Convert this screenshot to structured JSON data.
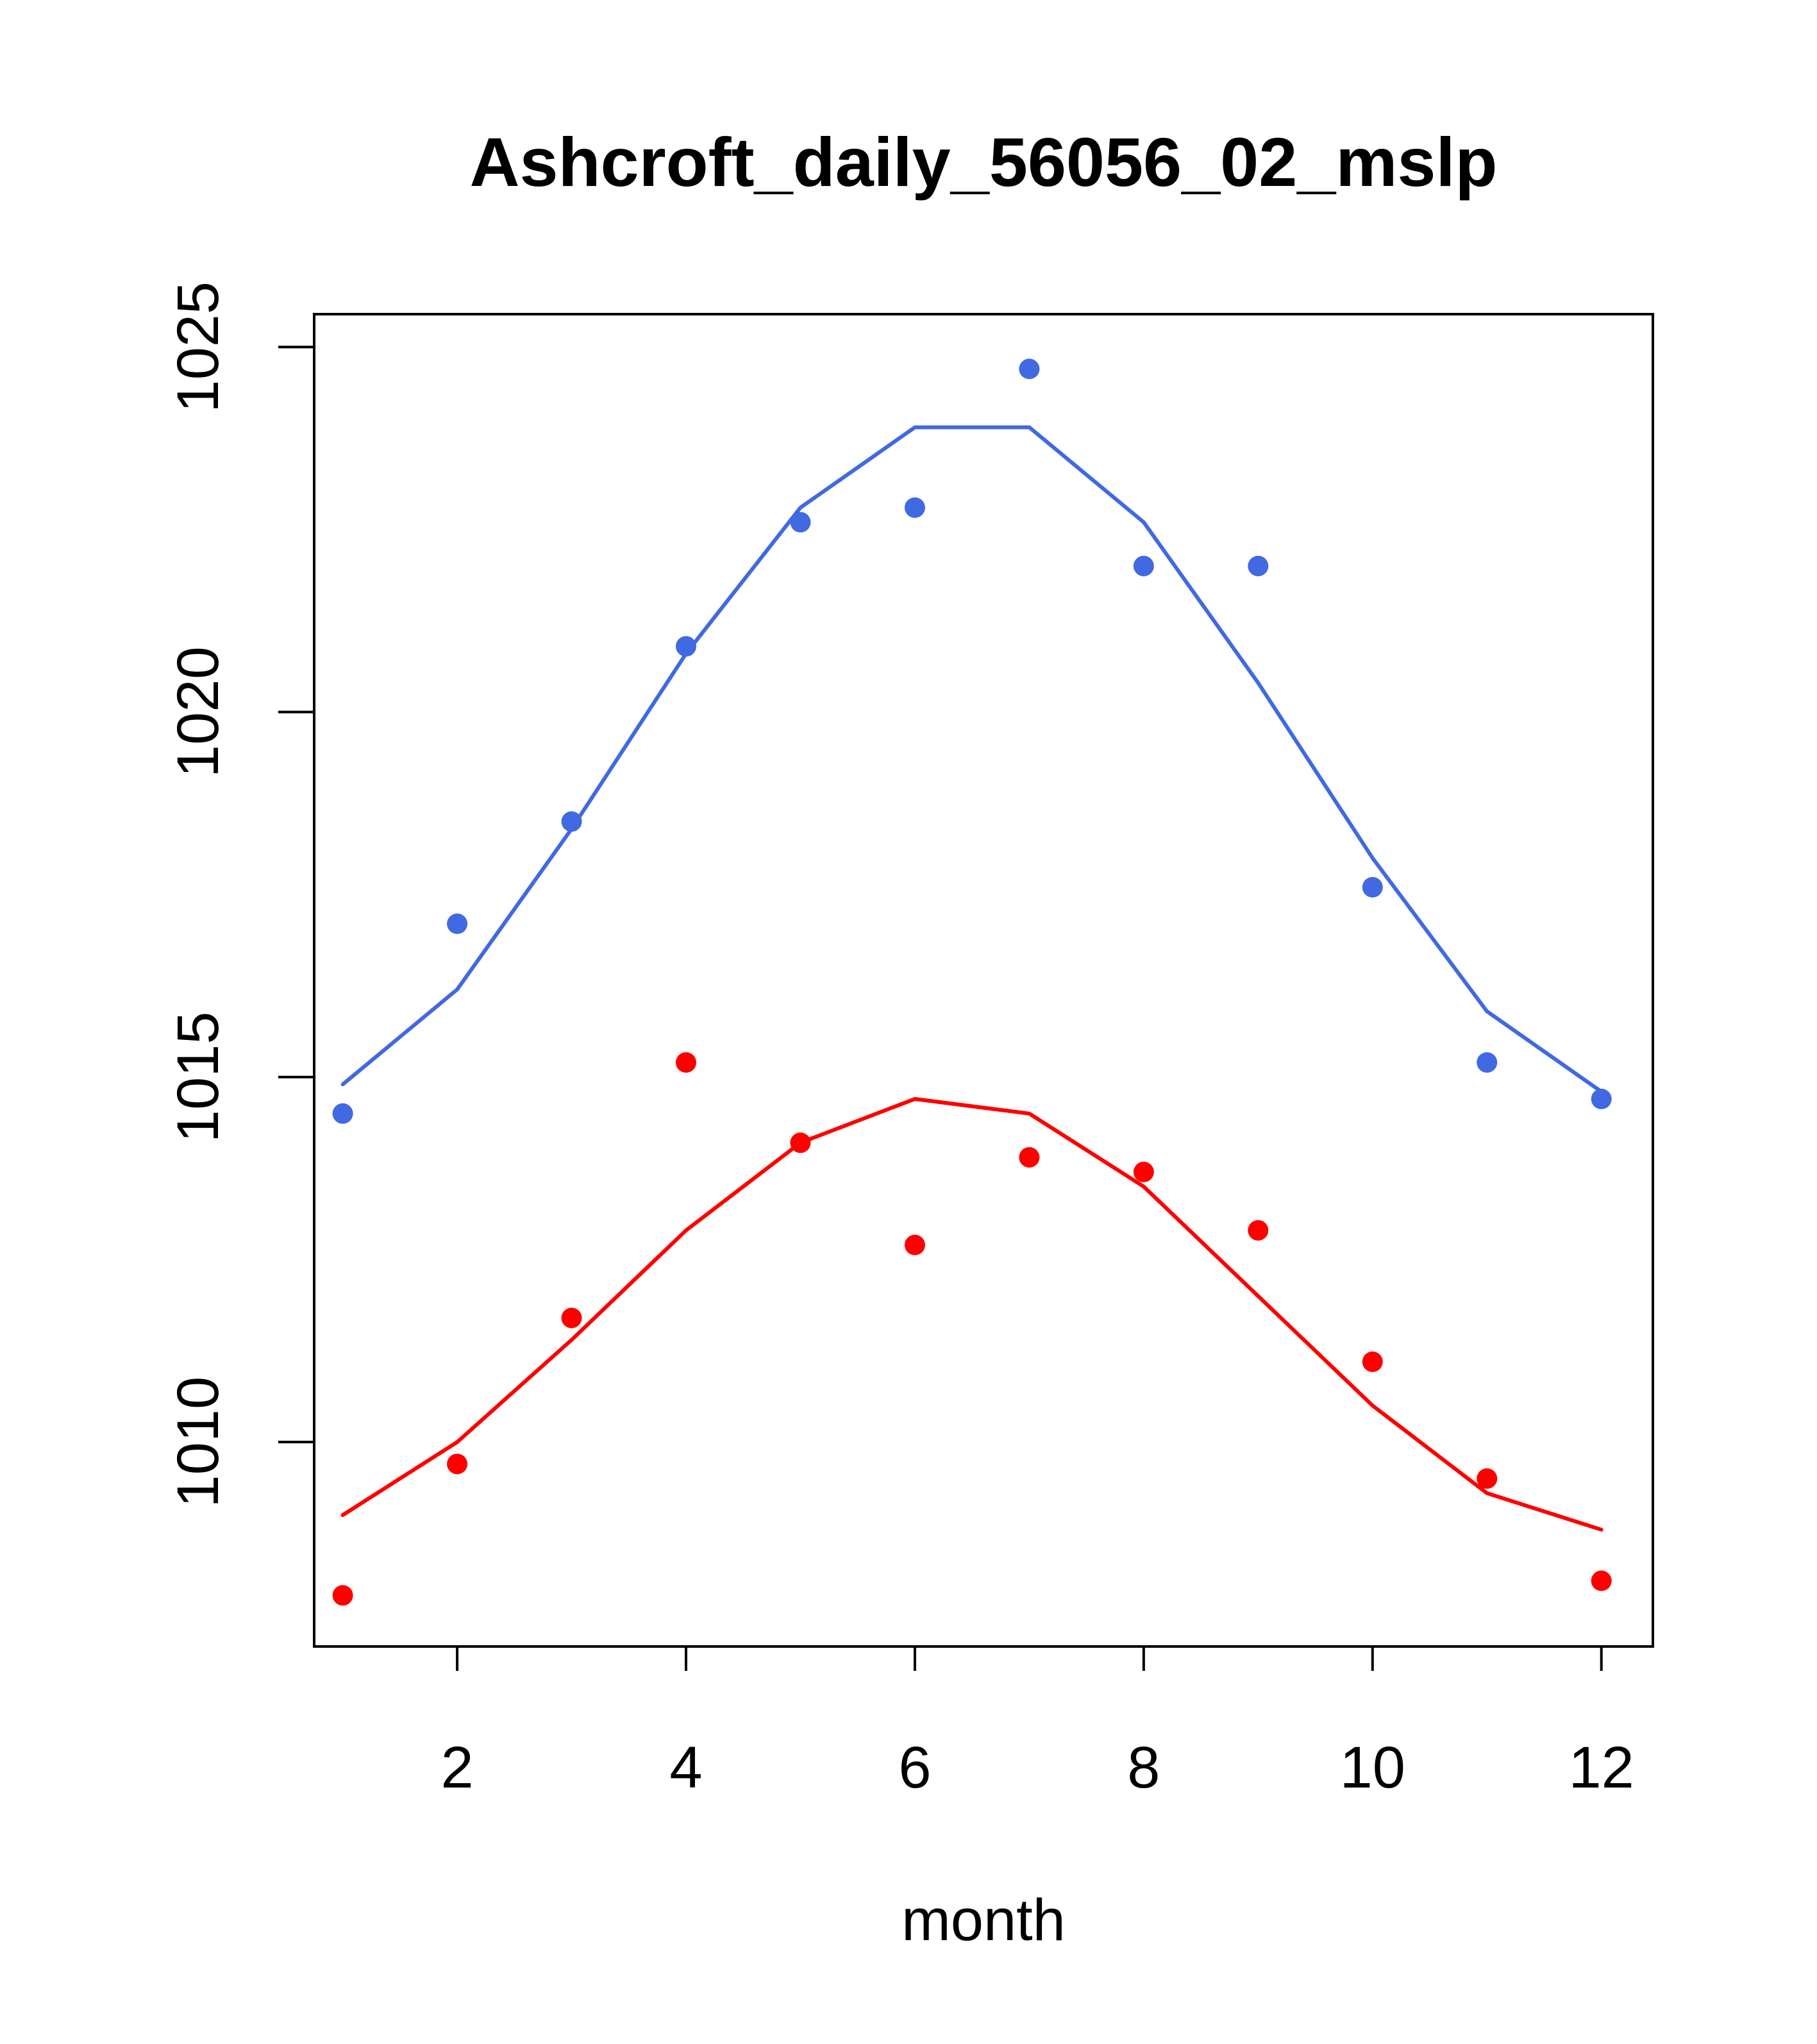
{
  "chart_data": {
    "type": "scatter",
    "title": "Ashcroft_daily_56056_02_mslp",
    "xlabel": "month",
    "ylabel": "",
    "xlim": [
      0.75,
      12.45
    ],
    "ylim": [
      1007.2,
      1025.45
    ],
    "x_ticks": [
      2,
      4,
      6,
      8,
      10,
      12
    ],
    "y_ticks": [
      1010,
      1015,
      1020,
      1025
    ],
    "grid": false,
    "x": [
      1,
      2,
      3,
      4,
      5,
      6,
      7,
      8,
      9,
      10,
      11,
      12
    ],
    "series": [
      {
        "color": "#4169E1",
        "points": [
          1014.5,
          1017.1,
          1018.5,
          1020.9,
          1022.6,
          1022.8,
          1024.7,
          1022.0,
          1022.0,
          1017.6,
          1015.2,
          1014.7
        ],
        "line": [
          1014.9,
          1016.2,
          1018.4,
          1020.8,
          1022.8,
          1023.9,
          1023.9,
          1022.6,
          1020.4,
          1018.0,
          1015.9,
          1014.8
        ]
      },
      {
        "color": "#FF0000",
        "points": [
          1007.9,
          1009.7,
          1011.7,
          1015.2,
          1014.1,
          1012.7,
          1013.9,
          1013.7,
          1012.9,
          1011.1,
          1009.5,
          1008.1
        ],
        "line": [
          1009.0,
          1010.0,
          1011.4,
          1012.9,
          1014.1,
          1014.7,
          1014.5,
          1013.5,
          1012.0,
          1010.5,
          1009.3,
          1008.8
        ]
      }
    ]
  }
}
